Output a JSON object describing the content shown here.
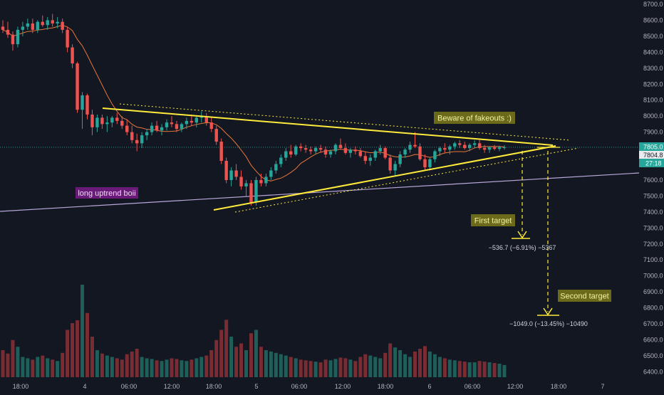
{
  "colors": {
    "background": "#131722",
    "up": "#26a69a",
    "down": "#ef5350",
    "vol_up": "#1f5f5a",
    "vol_down": "#7a2c33",
    "triangle": "#ffeb3b",
    "ma": "#e8773a",
    "long_trend": "#b9a6d8",
    "price_line": "#26a69a",
    "axis_text": "#b2b5be",
    "annotation_bg": "#6b6a1a",
    "annotation_text": "#f2f2a0",
    "uptrend_bg": "#6a1b7a",
    "uptrend_text": "#f0d8f5",
    "measure_text": "#d1d4dc"
  },
  "price_axis": {
    "ticks": [
      "8700.0",
      "8600.0",
      "8500.0",
      "8400.0",
      "8300.0",
      "8200.0",
      "8100.0",
      "8000.0",
      "7900.0",
      "7800.0",
      "7700.0",
      "7600.0",
      "7500.0",
      "7400.0",
      "7300.0",
      "7200.0",
      "7100.0",
      "7000.0",
      "6900.0",
      "6800.0",
      "6700.0",
      "6600.0",
      "6500.0",
      "6400.0"
    ],
    "last_price": "7805.0",
    "mark_price": "7804.8",
    "countdown": "27:18"
  },
  "time_axis": {
    "ticks": [
      "18:00",
      "4",
      "06:00",
      "12:00",
      "18:00",
      "5",
      "06:00",
      "12:00",
      "18:00",
      "6",
      "06:00",
      "12:00",
      "18:00",
      "7"
    ]
  },
  "annotations": {
    "fakeouts": "Beware of fakeouts :)",
    "uptrend": "long uptrend boii",
    "first_target": "First target",
    "second_target": "Second target",
    "first_measure": "−536.7 (−6.91%) −5367",
    "second_measure": "−1049.0 (−13.45%) −10490"
  },
  "chart_data": {
    "type": "candlestick",
    "y_range": [
      6360,
      8720
    ],
    "last_price": 7805.0,
    "triangle": {
      "upper_line": [
        [
          -64,
          8050
        ],
        [
          44,
          7800
        ]
      ],
      "lower_line": [
        [
          12,
          7440
        ],
        [
          44,
          7805
        ]
      ]
    },
    "long_uptrend_line": [
      [
        -90,
        7390
      ],
      [
        66,
        7660
      ]
    ],
    "first_target": {
      "change": -536.7,
      "pct": -6.91,
      "level": 7230
    },
    "second_target": {
      "change": -1049.0,
      "pct": -13.45,
      "level": 6750
    },
    "candles": [
      [
        8560,
        8600,
        8520,
        8540,
        40
      ],
      [
        8540,
        8590,
        8490,
        8510,
        35
      ],
      [
        8510,
        8530,
        8410,
        8450,
        55
      ],
      [
        8450,
        8560,
        8430,
        8540,
        45
      ],
      [
        8540,
        8590,
        8500,
        8560,
        30
      ],
      [
        8560,
        8610,
        8540,
        8580,
        28
      ],
      [
        8580,
        8610,
        8520,
        8540,
        26
      ],
      [
        8540,
        8600,
        8520,
        8590,
        30
      ],
      [
        8590,
        8630,
        8560,
        8570,
        32
      ],
      [
        8570,
        8620,
        8540,
        8600,
        28
      ],
      [
        8600,
        8640,
        8560,
        8580,
        26
      ],
      [
        8580,
        8620,
        8550,
        8590,
        24
      ],
      [
        8590,
        8610,
        8520,
        8540,
        36
      ],
      [
        8540,
        8560,
        8400,
        8430,
        70
      ],
      [
        8430,
        8450,
        8300,
        8330,
        80
      ],
      [
        8330,
        8340,
        8020,
        8040,
        120
      ],
      [
        8040,
        8150,
        7920,
        8130,
        140
      ],
      [
        8130,
        8140,
        7980,
        8010,
        95
      ],
      [
        8010,
        8040,
        7880,
        7930,
        60
      ],
      [
        7930,
        8010,
        7900,
        7990,
        40
      ],
      [
        7990,
        8010,
        7920,
        7950,
        35
      ],
      [
        7950,
        8000,
        7900,
        7960,
        32
      ],
      [
        7960,
        8000,
        7930,
        7990,
        30
      ],
      [
        7990,
        8020,
        7950,
        7970,
        28
      ],
      [
        7970,
        8000,
        7920,
        7940,
        26
      ],
      [
        7940,
        7980,
        7880,
        7900,
        34
      ],
      [
        7900,
        7940,
        7830,
        7850,
        38
      ],
      [
        7850,
        7890,
        7780,
        7830,
        42
      ],
      [
        7830,
        7900,
        7800,
        7880,
        30
      ],
      [
        7880,
        7920,
        7850,
        7900,
        28
      ],
      [
        7900,
        7960,
        7880,
        7940,
        27
      ],
      [
        7940,
        7970,
        7900,
        7910,
        25
      ],
      [
        7910,
        7950,
        7880,
        7930,
        24
      ],
      [
        7930,
        7980,
        7910,
        7960,
        26
      ],
      [
        7960,
        8000,
        7930,
        7950,
        28
      ],
      [
        7950,
        7970,
        7900,
        7920,
        27
      ],
      [
        7920,
        7960,
        7900,
        7950,
        25
      ],
      [
        7950,
        7990,
        7920,
        7970,
        24
      ],
      [
        7970,
        8010,
        7940,
        7960,
        26
      ],
      [
        7960,
        8000,
        7930,
        7990,
        28
      ],
      [
        7990,
        8030,
        7960,
        8000,
        30
      ],
      [
        8000,
        8020,
        7940,
        7960,
        32
      ],
      [
        7960,
        7990,
        7900,
        7920,
        40
      ],
      [
        7920,
        7940,
        7820,
        7840,
        55
      ],
      [
        7840,
        7860,
        7700,
        7720,
        70
      ],
      [
        7720,
        7740,
        7580,
        7600,
        85
      ],
      [
        7600,
        7680,
        7560,
        7660,
        60
      ],
      [
        7660,
        7700,
        7600,
        7620,
        45
      ],
      [
        7620,
        7660,
        7540,
        7560,
        50
      ],
      [
        7560,
        7600,
        7500,
        7580,
        40
      ],
      [
        7580,
        7600,
        7440,
        7460,
        65
      ],
      [
        7460,
        7620,
        7440,
        7600,
        70
      ],
      [
        7600,
        7640,
        7560,
        7580,
        45
      ],
      [
        7580,
        7640,
        7560,
        7620,
        40
      ],
      [
        7620,
        7680,
        7600,
        7660,
        38
      ],
      [
        7660,
        7720,
        7640,
        7700,
        36
      ],
      [
        7700,
        7760,
        7680,
        7740,
        34
      ],
      [
        7740,
        7800,
        7720,
        7780,
        32
      ],
      [
        7780,
        7820,
        7740,
        7760,
        30
      ],
      [
        7760,
        7820,
        7750,
        7810,
        28
      ],
      [
        7810,
        7830,
        7780,
        7800,
        26
      ],
      [
        7800,
        7820,
        7770,
        7790,
        25
      ],
      [
        7790,
        7810,
        7760,
        7780,
        24
      ],
      [
        7780,
        7810,
        7760,
        7800,
        23
      ],
      [
        7800,
        7820,
        7770,
        7790,
        22
      ],
      [
        7790,
        7810,
        7740,
        7760,
        26
      ],
      [
        7760,
        7790,
        7740,
        7780,
        25
      ],
      [
        7780,
        7830,
        7760,
        7820,
        27
      ],
      [
        7820,
        7860,
        7790,
        7800,
        29
      ],
      [
        7800,
        7830,
        7760,
        7770,
        28
      ],
      [
        7770,
        7800,
        7740,
        7790,
        26
      ],
      [
        7790,
        7810,
        7760,
        7780,
        24
      ],
      [
        7780,
        7800,
        7740,
        7750,
        30
      ],
      [
        7750,
        7780,
        7700,
        7720,
        34
      ],
      [
        7720,
        7760,
        7690,
        7740,
        32
      ],
      [
        7740,
        7790,
        7720,
        7780,
        30
      ],
      [
        7780,
        7820,
        7760,
        7800,
        28
      ],
      [
        7800,
        7810,
        7730,
        7740,
        36
      ],
      [
        7740,
        7760,
        7640,
        7660,
        50
      ],
      [
        7660,
        7720,
        7630,
        7700,
        44
      ],
      [
        7700,
        7780,
        7680,
        7760,
        40
      ],
      [
        7760,
        7800,
        7740,
        7790,
        34
      ],
      [
        7790,
        7840,
        7770,
        7820,
        30
      ],
      [
        7820,
        7900,
        7800,
        7810,
        38
      ],
      [
        7810,
        7830,
        7720,
        7730,
        42
      ],
      [
        7730,
        7760,
        7660,
        7680,
        46
      ],
      [
        7680,
        7740,
        7660,
        7730,
        38
      ],
      [
        7730,
        7790,
        7710,
        7780,
        34
      ],
      [
        7780,
        7810,
        7750,
        7800,
        30
      ],
      [
        7800,
        7830,
        7770,
        7790,
        28
      ],
      [
        7790,
        7820,
        7760,
        7810,
        26
      ],
      [
        7810,
        7840,
        7790,
        7830,
        25
      ],
      [
        7830,
        7850,
        7800,
        7820,
        24
      ],
      [
        7820,
        7840,
        7790,
        7800,
        23
      ],
      [
        7800,
        7830,
        7780,
        7820,
        22
      ],
      [
        7820,
        7850,
        7800,
        7830,
        22
      ],
      [
        7830,
        7850,
        7790,
        7800,
        24
      ],
      [
        7800,
        7820,
        7770,
        7790,
        23
      ],
      [
        7790,
        7810,
        7770,
        7805,
        22
      ],
      [
        7805,
        7820,
        7785,
        7795,
        21
      ],
      [
        7795,
        7815,
        7780,
        7805,
        20
      ],
      [
        7805,
        7818,
        7790,
        7805,
        18
      ]
    ]
  }
}
